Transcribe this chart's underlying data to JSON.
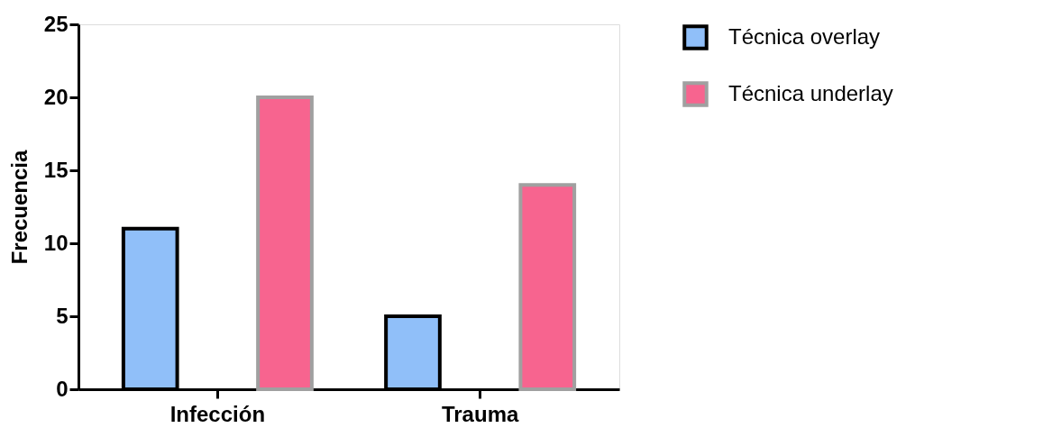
{
  "chart_data": {
    "type": "bar",
    "ylabel": "Frecuencia",
    "categories": [
      "Infección",
      "Trauma"
    ],
    "series": [
      {
        "name": "Técnica overlay",
        "color": "#90bff9",
        "values": [
          11,
          5
        ]
      },
      {
        "name": "Técnica underlay",
        "color": "#f7648f",
        "values": [
          20,
          14
        ]
      }
    ],
    "ylim": [
      0,
      25
    ],
    "yticks": [
      0,
      5,
      10,
      15,
      20,
      25
    ],
    "grid": false,
    "legend": "top right"
  }
}
